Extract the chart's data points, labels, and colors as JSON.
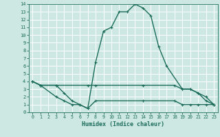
{
  "xlabel": "Humidex (Indice chaleur)",
  "bg_color": "#cde8e2",
  "grid_color": "#ffffff",
  "line_color": "#1a6b5a",
  "xlim": [
    -0.5,
    23.5
  ],
  "ylim": [
    0,
    14
  ],
  "xticks": [
    0,
    1,
    2,
    3,
    4,
    5,
    6,
    7,
    8,
    9,
    10,
    11,
    12,
    13,
    14,
    15,
    16,
    17,
    18,
    19,
    20,
    21,
    22,
    23
  ],
  "yticks": [
    0,
    1,
    2,
    3,
    4,
    5,
    6,
    7,
    8,
    9,
    10,
    11,
    12,
    13,
    14
  ],
  "line_main": {
    "x": [
      0,
      1,
      3,
      4,
      5,
      6,
      7,
      8,
      9,
      10,
      11,
      12,
      13,
      14,
      15,
      16,
      17,
      19,
      20,
      21,
      22,
      23
    ],
    "y": [
      4,
      3.5,
      3.5,
      2.5,
      1.5,
      1.0,
      0.5,
      6.5,
      10.5,
      11.0,
      13.0,
      13.0,
      14.0,
      13.5,
      12.5,
      8.5,
      6.0,
      3.0,
      3.0,
      2.5,
      1.5,
      1.0
    ]
  },
  "line_upper_flat": {
    "x": [
      0,
      1,
      3,
      7,
      8,
      14,
      18,
      19,
      20,
      21,
      22,
      23
    ],
    "y": [
      4,
      3.5,
      3.5,
      3.5,
      3.5,
      3.5,
      3.5,
      3.0,
      3.0,
      2.5,
      2.0,
      1.0
    ]
  },
  "line_lower": {
    "x": [
      0,
      1,
      3,
      4,
      5,
      6,
      7,
      8,
      14,
      18,
      19,
      20,
      21,
      22,
      23
    ],
    "y": [
      4,
      3.5,
      2.0,
      1.5,
      1.0,
      1.0,
      0.5,
      1.5,
      1.5,
      1.5,
      1.0,
      1.0,
      1.0,
      1.0,
      1.0
    ]
  }
}
